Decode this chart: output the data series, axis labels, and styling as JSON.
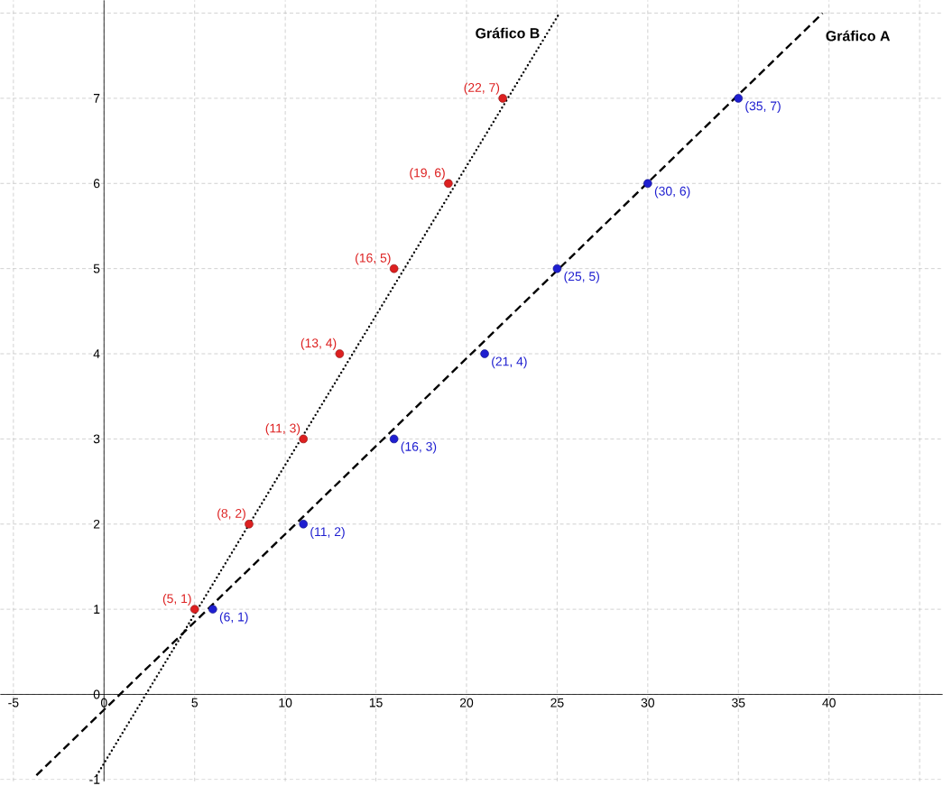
{
  "chart_data": {
    "type": "scatter",
    "xlim": [
      -5.72,
      46.27
    ],
    "ylim": [
      -1.02,
      8.15
    ],
    "xticks": [
      -5,
      0,
      5,
      10,
      15,
      20,
      25,
      30,
      35,
      40,
      {
        "value": 45,
        "label": null
      }
    ],
    "yticks": [
      -1,
      0,
      1,
      2,
      3,
      4,
      5,
      6,
      7,
      {
        "value": 8,
        "label": null
      }
    ],
    "grid": true,
    "series": [
      {
        "type": "line",
        "name": "Gráfico A",
        "color": "#000000",
        "line_style": "dashed",
        "marker": "none",
        "x": [
          -3.73,
          39.65
        ],
        "values": [
          -0.95,
          8.0
        ]
      },
      {
        "color": "#1f1fd0",
        "marker": "circle",
        "x": [
          6,
          11,
          16,
          21,
          25,
          30,
          35
        ],
        "values": [
          1,
          2,
          3,
          4,
          5,
          6,
          7
        ],
        "value_labels": [
          "(6, 1)",
          "(11, 2)",
          "(16, 3)",
          "(21, 4)",
          "(25, 5)",
          "(30, 6)",
          "(35, 7)"
        ]
      },
      {
        "type": "line",
        "name": "Gráfico B",
        "color": "#000000",
        "line_style": "dotted",
        "marker": "none",
        "x": [
          -0.4,
          25.1
        ],
        "values": [
          -0.95,
          7.99
        ]
      },
      {
        "color": "#dd2020",
        "marker": "circle",
        "x": [
          5,
          8,
          11,
          13,
          16,
          19,
          22
        ],
        "values": [
          1,
          2,
          3,
          4,
          5,
          6,
          7
        ],
        "value_labels": [
          "(5, 1)",
          "(8, 2)",
          "(11, 3)",
          "(13, 4)",
          "(16, 5)",
          "(19, 6)",
          "(22, 7)"
        ]
      }
    ]
  }
}
